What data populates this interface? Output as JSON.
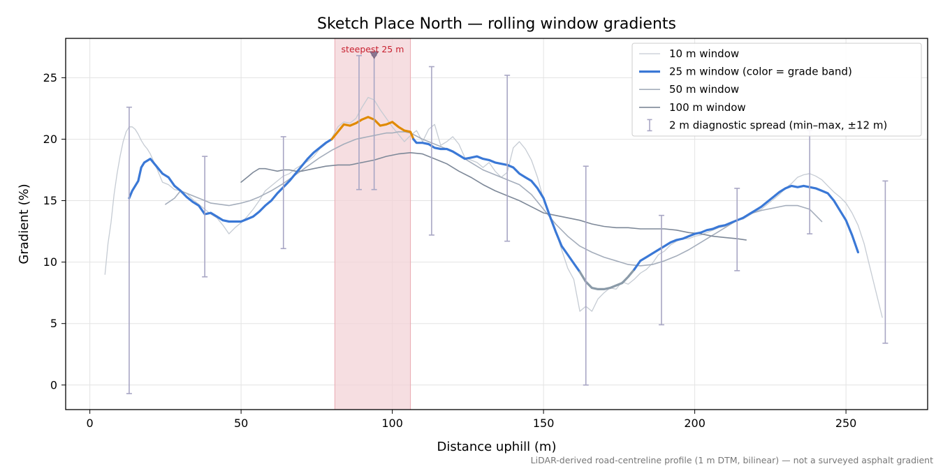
{
  "chart_data": {
    "type": "line",
    "title": "Sketch Place North — rolling window gradients",
    "xlabel": "Distance uphill (m)",
    "ylabel": "Gradient (%)",
    "xlim": [
      -8,
      277
    ],
    "ylim": [
      -2,
      28.2
    ],
    "x_ticks": [
      0,
      50,
      100,
      150,
      200,
      250
    ],
    "y_ticks": [
      0,
      5,
      10,
      15,
      20,
      25
    ],
    "grid": true,
    "legend_position": "top-right",
    "footnote": "LiDAR-derived road-centreline profile (1 m DTM, bilinear) — not a surveyed asphalt gradient",
    "steepest_segment": {
      "label": "steepest 25 m",
      "x_start": 81,
      "x_end": 106,
      "marker_x": 94,
      "marker_y": 26.9,
      "color": "#c8202f"
    },
    "grade_band_colors": {
      "normal": "#3a78d6",
      "steep": "#e08a00",
      "shallow": "#8a9aa8"
    },
    "series": [
      {
        "name": "10 m window",
        "color": "#c5cbd3",
        "width": 1.3,
        "x": [
          5,
          6,
          7,
          8,
          9,
          10,
          11,
          12,
          13,
          14,
          15,
          16,
          17,
          18,
          19,
          20,
          22,
          24,
          26,
          28,
          30,
          32,
          34,
          36,
          38,
          40,
          42,
          44,
          46,
          48,
          50,
          52,
          54,
          56,
          58,
          60,
          62,
          64,
          66,
          68,
          70,
          72,
          74,
          76,
          78,
          80,
          82,
          84,
          86,
          88,
          90,
          92,
          94,
          96,
          98,
          100,
          102,
          104,
          106,
          108,
          110,
          112,
          114,
          116,
          118,
          120,
          122,
          124,
          126,
          128,
          130,
          132,
          134,
          136,
          138,
          140,
          142,
          144,
          146,
          148,
          150,
          152,
          154,
          156,
          158,
          160,
          162,
          164,
          166,
          168,
          170,
          172,
          174,
          176,
          178,
          180,
          182,
          184,
          186,
          188,
          190,
          192,
          194,
          196,
          198,
          200,
          202,
          204,
          206,
          208,
          210,
          212,
          214,
          216,
          218,
          220,
          222,
          224,
          226,
          228,
          230,
          232,
          234,
          236,
          238,
          240,
          242,
          244,
          246,
          248,
          250,
          252,
          254,
          256,
          258,
          260,
          262
        ],
        "y": [
          9.0,
          11.5,
          13.2,
          15.5,
          17.2,
          18.6,
          19.8,
          20.6,
          21.0,
          21.0,
          20.8,
          20.4,
          19.9,
          19.5,
          19.2,
          18.8,
          17.7,
          16.5,
          16.3,
          15.9,
          15.8,
          15.6,
          15.1,
          14.7,
          14.3,
          13.9,
          13.6,
          13.0,
          12.3,
          12.8,
          13.2,
          13.7,
          14.3,
          15.0,
          15.8,
          16.2,
          16.6,
          17.0,
          17.2,
          17.6,
          17.9,
          18.2,
          18.6,
          19.2,
          19.6,
          20.1,
          21.0,
          21.4,
          21.3,
          21.7,
          22.6,
          23.4,
          23.2,
          22.4,
          21.7,
          21.0,
          20.4,
          19.8,
          20.3,
          20.7,
          19.8,
          20.8,
          21.2,
          19.5,
          19.8,
          20.2,
          19.6,
          18.5,
          18.3,
          18.1,
          17.7,
          18.1,
          17.4,
          16.9,
          17.3,
          19.3,
          19.8,
          19.2,
          18.3,
          16.9,
          15.1,
          13.8,
          12.5,
          11.0,
          9.5,
          8.6,
          6.0,
          6.4,
          6.0,
          7.0,
          7.5,
          7.9,
          7.8,
          8.4,
          8.2,
          8.6,
          9.1,
          9.4,
          9.9,
          10.6,
          10.9,
          11.4,
          11.7,
          11.9,
          11.9,
          12.1,
          12.2,
          12.4,
          12.6,
          12.8,
          12.9,
          13.2,
          13.4,
          13.5,
          13.8,
          14.1,
          14.3,
          14.7,
          15.1,
          15.5,
          16.0,
          16.4,
          16.9,
          17.1,
          17.2,
          17.0,
          16.7,
          16.2,
          15.7,
          15.3,
          14.8,
          14.0,
          13.0,
          11.5,
          9.5,
          7.5,
          5.5
        ]
      },
      {
        "name": "25 m window (color = grade band)",
        "color": "#3a78d6",
        "width": 3.2,
        "x": [
          13,
          14,
          16,
          17,
          18,
          20,
          22,
          24,
          26,
          28,
          30,
          32,
          34,
          36,
          38,
          40,
          42,
          44,
          46,
          48,
          50,
          52,
          54,
          56,
          58,
          60,
          62,
          64,
          66,
          68,
          70,
          72,
          74,
          76,
          78,
          80,
          82,
          84,
          86,
          88,
          90,
          92,
          94,
          96,
          98,
          100,
          102,
          104,
          106,
          107,
          108,
          110,
          112,
          114,
          116,
          118,
          120,
          122,
          124,
          126,
          128,
          130,
          132,
          134,
          136,
          138,
          140,
          142,
          144,
          146,
          148,
          150,
          152,
          154,
          156,
          158,
          160,
          162,
          164,
          166,
          168,
          170,
          172,
          174,
          176,
          178,
          180,
          182,
          184,
          186,
          188,
          190,
          192,
          194,
          196,
          198,
          200,
          202,
          204,
          206,
          208,
          210,
          212,
          214,
          216,
          218,
          220,
          222,
          224,
          226,
          228,
          230,
          232,
          234,
          236,
          238,
          240,
          242,
          244,
          246,
          248,
          250,
          252,
          254
        ],
        "y": [
          15.2,
          15.8,
          16.6,
          17.7,
          18.1,
          18.4,
          17.8,
          17.2,
          16.9,
          16.2,
          15.8,
          15.3,
          14.9,
          14.6,
          13.9,
          14.0,
          13.7,
          13.4,
          13.3,
          13.3,
          13.3,
          13.5,
          13.7,
          14.1,
          14.6,
          15.0,
          15.6,
          16.1,
          16.6,
          17.2,
          17.8,
          18.4,
          18.9,
          19.3,
          19.7,
          20.0,
          20.6,
          21.2,
          21.1,
          21.3,
          21.6,
          21.8,
          21.6,
          21.1,
          21.2,
          21.4,
          21.0,
          20.7,
          20.6,
          20.0,
          19.7,
          19.7,
          19.6,
          19.3,
          19.2,
          19.2,
          19.0,
          18.7,
          18.4,
          18.5,
          18.6,
          18.4,
          18.3,
          18.1,
          18.0,
          17.9,
          17.7,
          17.2,
          16.9,
          16.6,
          16.0,
          15.2,
          13.8,
          12.5,
          11.3,
          10.6,
          9.9,
          9.2,
          8.4,
          7.9,
          7.8,
          7.8,
          7.9,
          8.1,
          8.3,
          8.8,
          9.4,
          10.1,
          10.4,
          10.7,
          11.0,
          11.3,
          11.6,
          11.8,
          11.9,
          12.1,
          12.3,
          12.4,
          12.6,
          12.7,
          12.9,
          13.0,
          13.2,
          13.4,
          13.6,
          13.9,
          14.2,
          14.5,
          14.9,
          15.3,
          15.7,
          16.0,
          16.2,
          16.1,
          16.2,
          16.1,
          16.0,
          15.8,
          15.6,
          15.0,
          14.2,
          13.4,
          12.2,
          10.8
        ],
        "grade_band": [
          {
            "band": "normal",
            "x_range": [
              13,
              80
            ]
          },
          {
            "band": "steep",
            "x_range": [
              80,
              107
            ]
          },
          {
            "band": "normal",
            "x_range": [
              107,
              162
            ]
          },
          {
            "band": "shallow",
            "x_range": [
              162,
              180
            ]
          },
          {
            "band": "normal",
            "x_range": [
              180,
              254
            ]
          }
        ]
      },
      {
        "name": "50 m window",
        "color": "#a4adbb",
        "width": 1.6,
        "x": [
          25,
          28,
          30,
          32,
          35,
          38,
          40,
          43,
          46,
          48,
          50,
          53,
          56,
          60,
          64,
          68,
          72,
          76,
          80,
          84,
          86,
          88,
          90,
          92,
          94,
          96,
          98,
          100,
          102,
          104,
          106,
          110,
          114,
          118,
          122,
          126,
          130,
          134,
          138,
          142,
          146,
          150,
          154,
          158,
          162,
          166,
          170,
          174,
          178,
          182,
          186,
          190,
          194,
          198,
          202,
          206,
          210,
          214,
          218,
          222,
          226,
          230,
          234,
          238,
          240,
          242
        ],
        "y": [
          14.7,
          15.2,
          15.8,
          15.6,
          15.3,
          15.0,
          14.8,
          14.7,
          14.6,
          14.7,
          14.8,
          15.0,
          15.3,
          15.8,
          16.4,
          17.1,
          17.8,
          18.5,
          19.1,
          19.6,
          19.8,
          20.0,
          20.1,
          20.2,
          20.3,
          20.4,
          20.5,
          20.5,
          20.6,
          20.6,
          20.5,
          20.0,
          19.6,
          19.2,
          18.7,
          18.1,
          17.5,
          17.1,
          16.7,
          16.3,
          15.5,
          14.3,
          13.1,
          12.1,
          11.3,
          10.8,
          10.4,
          10.1,
          9.8,
          9.7,
          9.8,
          10.1,
          10.5,
          11.0,
          11.6,
          12.2,
          12.8,
          13.4,
          13.9,
          14.2,
          14.4,
          14.6,
          14.6,
          14.3,
          13.8,
          13.3
        ]
      },
      {
        "name": "100 m window",
        "color": "#7d8898",
        "width": 1.6,
        "x": [
          50,
          52,
          54,
          56,
          58,
          60,
          62,
          64,
          66,
          68,
          70,
          74,
          78,
          82,
          86,
          90,
          94,
          98,
          102,
          106,
          110,
          114,
          118,
          122,
          126,
          130,
          134,
          138,
          142,
          146,
          150,
          154,
          158,
          162,
          166,
          170,
          174,
          178,
          182,
          186,
          190,
          194,
          198,
          202,
          206,
          210,
          214,
          217
        ],
        "y": [
          16.5,
          16.9,
          17.3,
          17.6,
          17.6,
          17.5,
          17.4,
          17.5,
          17.5,
          17.4,
          17.4,
          17.6,
          17.8,
          17.9,
          17.9,
          18.1,
          18.3,
          18.6,
          18.8,
          18.9,
          18.8,
          18.4,
          18.0,
          17.4,
          16.9,
          16.3,
          15.8,
          15.4,
          15.0,
          14.5,
          14.0,
          13.8,
          13.6,
          13.4,
          13.1,
          12.9,
          12.8,
          12.8,
          12.7,
          12.7,
          12.7,
          12.6,
          12.4,
          12.3,
          12.1,
          12.0,
          11.9,
          11.8
        ]
      }
    ],
    "error_bars": {
      "name": "2 m diagnostic spread (min–max, ±12 m)",
      "color": "#a8a6c4",
      "points": [
        {
          "x": 13,
          "low": -0.7,
          "high": 22.6
        },
        {
          "x": 38,
          "low": 8.8,
          "high": 18.6
        },
        {
          "x": 64,
          "low": 11.1,
          "high": 20.2
        },
        {
          "x": 89,
          "low": 15.9,
          "high": 26.8
        },
        {
          "x": 94,
          "low": 15.9,
          "high": 26.8
        },
        {
          "x": 113,
          "low": 12.2,
          "high": 25.9
        },
        {
          "x": 138,
          "low": 11.7,
          "high": 25.2
        },
        {
          "x": 164,
          "low": 0.0,
          "high": 17.8
        },
        {
          "x": 189,
          "low": 4.9,
          "high": 13.8
        },
        {
          "x": 214,
          "low": 9.3,
          "high": 16.0
        },
        {
          "x": 238,
          "low": 12.3,
          "high": 20.7
        },
        {
          "x": 263,
          "low": 3.4,
          "high": 16.6
        }
      ]
    }
  }
}
